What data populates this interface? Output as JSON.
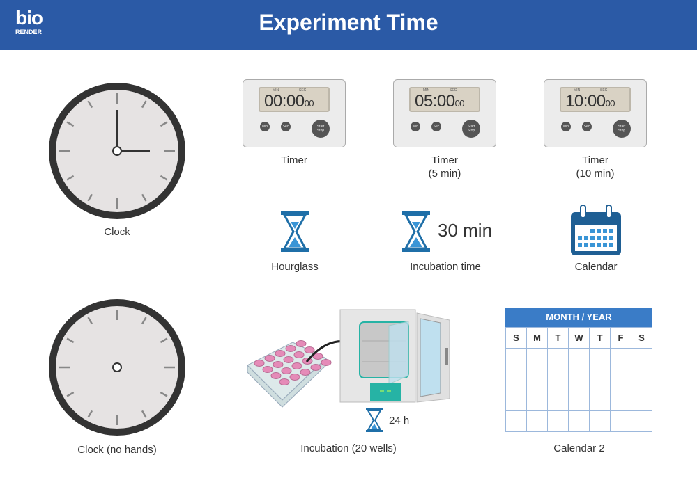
{
  "header": {
    "title": "Experiment Time",
    "logo_top": "bio",
    "logo_bottom": "RENDER",
    "color": "#2b5aa6"
  },
  "items": {
    "clock": "Clock",
    "clock_no_hands": "Clock (no hands)",
    "timers": [
      {
        "label": "Timer",
        "sub": "",
        "display": "00:00",
        "small": "00"
      },
      {
        "label": "Timer",
        "sub": "(5 min)",
        "display": "05:00",
        "small": "00"
      },
      {
        "label": "Timer",
        "sub": "(10 min)",
        "display": "10:00",
        "small": "00"
      }
    ],
    "timer_min_label": "MIN",
    "timer_sec_label": "SEC",
    "btn_min": "Min",
    "btn_sec": "Sec",
    "btn_start": "Start",
    "btn_stop": "Stop",
    "hourglass": "Hourglass",
    "incubation_time": "Incubation time",
    "incubation_value": "30 min",
    "calendar": "Calendar",
    "incubation_wells": "Incubation (20 wells)",
    "incubation_duration": "24 h",
    "calendar2": "Calendar 2"
  },
  "calendar2": {
    "header": "MONTH / YEAR",
    "days": [
      "S",
      "M",
      "T",
      "W",
      "T",
      "F",
      "S"
    ]
  },
  "colors": {
    "accent": "#1f6fa8",
    "teal": "#26b3a5",
    "well": "#e58bb8"
  }
}
